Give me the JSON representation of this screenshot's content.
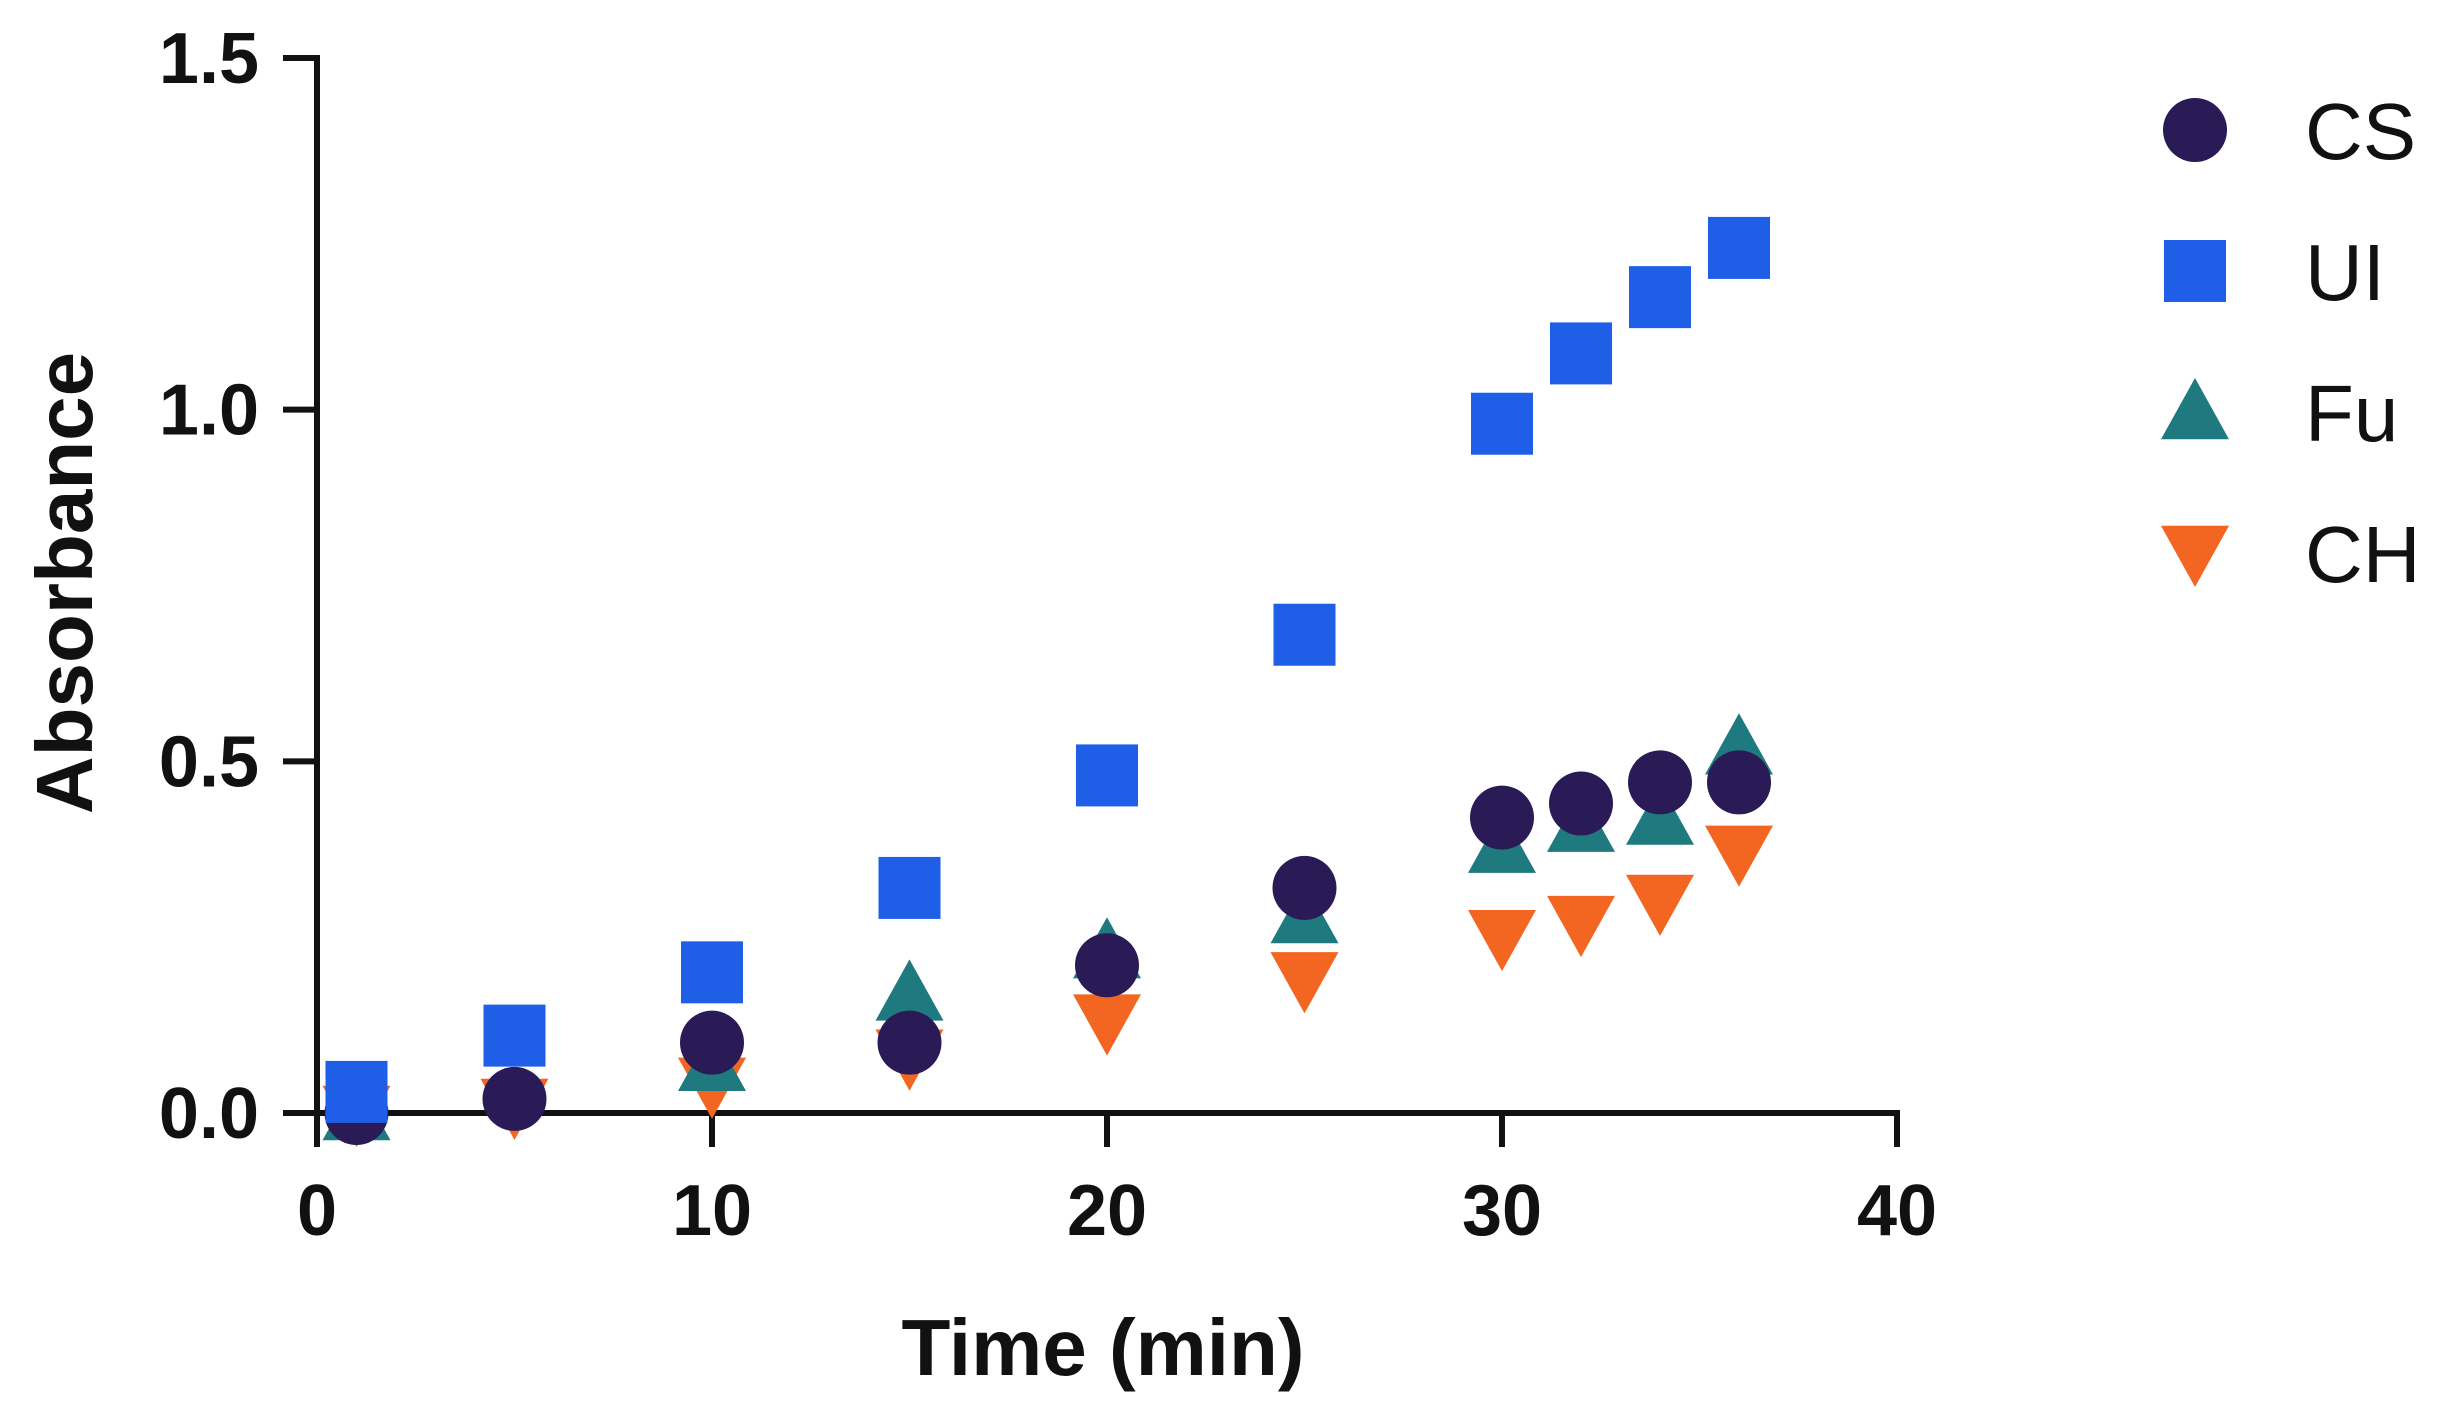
{
  "chart_data": {
    "type": "scatter",
    "title": "",
    "xlabel": "Time (min)",
    "ylabel": "Absorbance",
    "xlim": [
      0,
      40
    ],
    "ylim": [
      0,
      1.5
    ],
    "xticks": [
      0,
      10,
      20,
      30,
      40
    ],
    "yticks": [
      0.0,
      0.5,
      1.0,
      1.5
    ],
    "xtick_labels": [
      "0",
      "10",
      "20",
      "30",
      "40"
    ],
    "ytick_labels": [
      "0.0",
      "0.5",
      "1.0",
      "1.5"
    ],
    "grid": false,
    "legend_position": "right",
    "series": [
      {
        "name": "CS",
        "marker": "circle",
        "color": "#2a1a55",
        "x": [
          1,
          5,
          10,
          15,
          20,
          25,
          30,
          32,
          34,
          36
        ],
        "y": [
          0.0,
          0.02,
          0.1,
          0.1,
          0.21,
          0.32,
          0.42,
          0.44,
          0.47,
          0.47
        ]
      },
      {
        "name": "UI",
        "marker": "square",
        "color": "#1f5fe8",
        "x": [
          1,
          5,
          10,
          15,
          20,
          25,
          30,
          32,
          34,
          36
        ],
        "y": [
          0.03,
          0.11,
          0.2,
          0.32,
          0.48,
          0.68,
          0.98,
          1.08,
          1.16,
          1.23
        ]
      },
      {
        "name": "Fu",
        "marker": "triangle-up",
        "color": "#1e7a7f",
        "x": [
          1,
          10,
          15,
          20,
          25,
          30,
          32,
          34,
          36
        ],
        "y": [
          0.0,
          0.07,
          0.17,
          0.23,
          0.28,
          0.38,
          0.41,
          0.42,
          0.52
        ]
      },
      {
        "name": "CH",
        "marker": "triangle-down",
        "color": "#f26622",
        "x": [
          1,
          5,
          10,
          15,
          20,
          25,
          30,
          32,
          34,
          36
        ],
        "y": [
          0.0,
          0.01,
          0.04,
          0.08,
          0.13,
          0.19,
          0.25,
          0.27,
          0.3,
          0.37
        ]
      }
    ]
  }
}
